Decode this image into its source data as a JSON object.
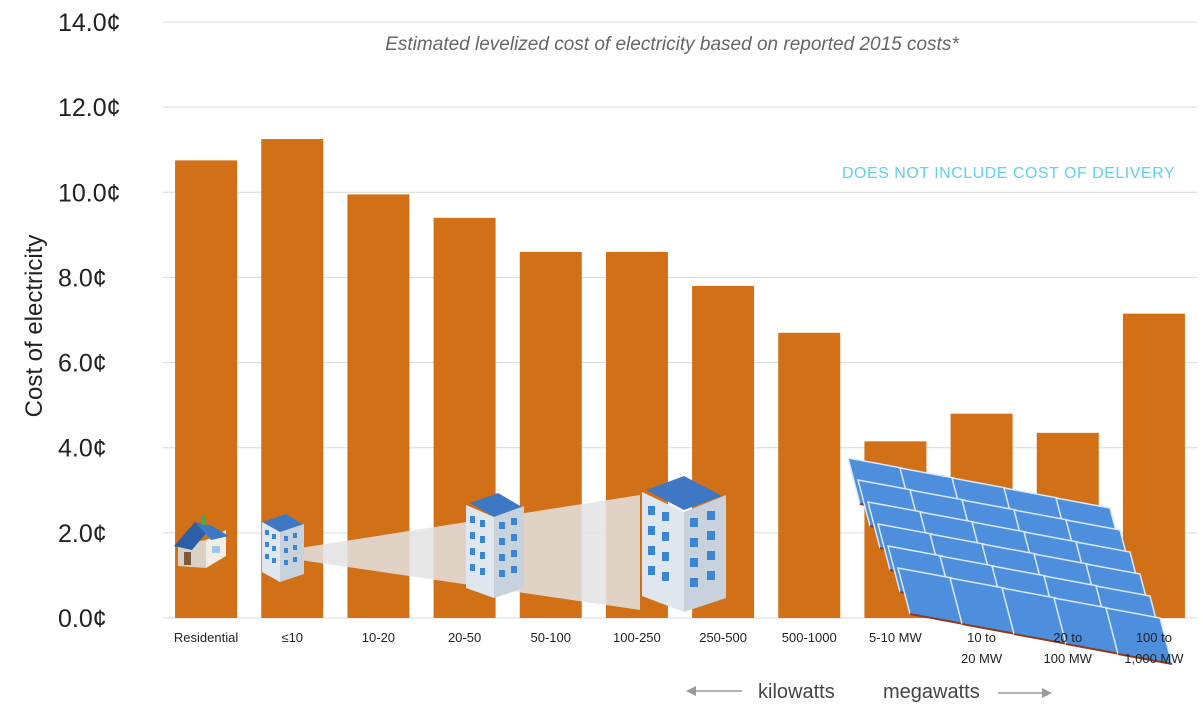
{
  "chart_data": {
    "type": "bar",
    "title": "",
    "subtitle": "Estimated levelized cost of electricity based on reported 2015 costs*",
    "annotation": "DOES NOT INCLUDE COST OF DELIVERY",
    "ylabel": "Cost of electricity",
    "xlabel": "",
    "ylim": [
      0,
      14
    ],
    "y_ticks": [
      "0.0¢",
      "2.0¢",
      "4.0¢",
      "6.0¢",
      "8.0¢",
      "10.0¢",
      "12.0¢",
      "14.0¢"
    ],
    "grid": true,
    "categories": [
      [
        "Residential"
      ],
      [
        "≤10"
      ],
      [
        "10-20"
      ],
      [
        "20-50"
      ],
      [
        "50-100"
      ],
      [
        "100-250"
      ],
      [
        "250-500"
      ],
      [
        "500-1000"
      ],
      [
        "5-10 MW"
      ],
      [
        "10 to",
        "20 MW"
      ],
      [
        "20 to",
        "100 MW"
      ],
      [
        "100 to",
        "1,000 MW"
      ]
    ],
    "values": [
      10.75,
      11.25,
      9.95,
      9.4,
      8.6,
      8.6,
      7.8,
      6.7,
      4.15,
      4.8,
      4.35,
      7.15
    ],
    "bar_color": "#d17017",
    "grid_color": "#d9d9d9",
    "unit_scale": {
      "left_label": "kilowatts",
      "right_label": "megawatts"
    },
    "illustrations": [
      "house-icon",
      "small-building-icon",
      "medium-building-icon",
      "large-building-icon",
      "solar-farm-icon"
    ]
  }
}
